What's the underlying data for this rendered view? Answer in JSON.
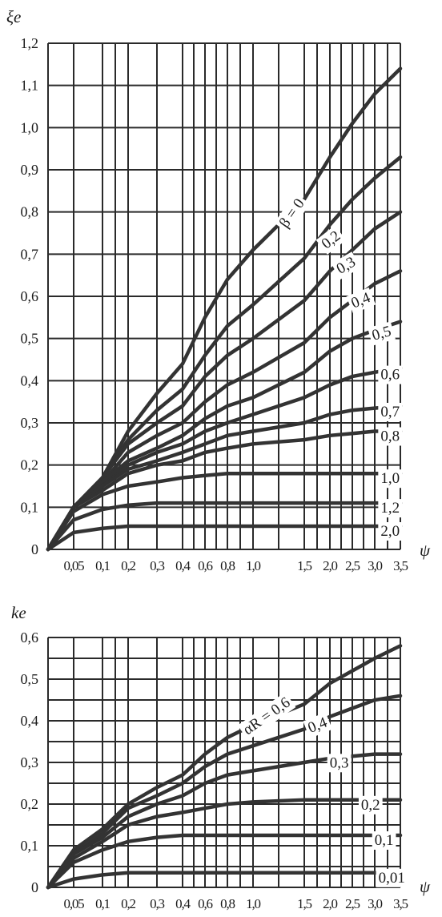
{
  "chart_data": [
    {
      "type": "line",
      "ylabel": "ξe",
      "xlabel": "ψ",
      "xlim": [
        0,
        3.5
      ],
      "ylim": [
        0,
        1.2
      ],
      "y_ticks": [
        "0",
        "0,1",
        "0,2",
        "0,3",
        "0,4",
        "0,5",
        "0,6",
        "0,7",
        "0,8",
        "0,9",
        "1,0",
        "1,1",
        "1,2"
      ],
      "x_ticks": [
        "0,05",
        "0,1",
        "0,2",
        "0,3",
        "0,4",
        "0,6",
        "0,8",
        "1,0",
        "1,5",
        "2,0",
        "2,5",
        "3,0",
        "3,5"
      ],
      "grid": true,
      "series": [
        {
          "name": "β = 0",
          "x": [
            0,
            0.05,
            0.1,
            0.2,
            0.3,
            0.4,
            0.6,
            0.8,
            1.0,
            1.5,
            2.0,
            2.5,
            3.0,
            3.5
          ],
          "values": [
            0,
            0.1,
            0.17,
            0.28,
            0.37,
            0.44,
            0.55,
            0.64,
            0.71,
            0.83,
            0.93,
            1.01,
            1.08,
            1.14
          ]
        },
        {
          "name": "0,2",
          "x": [
            0,
            0.05,
            0.1,
            0.2,
            0.3,
            0.4,
            0.6,
            0.8,
            1.0,
            1.5,
            2.0,
            2.5,
            3.0,
            3.5
          ],
          "values": [
            0,
            0.1,
            0.17,
            0.26,
            0.33,
            0.38,
            0.46,
            0.53,
            0.58,
            0.69,
            0.77,
            0.83,
            0.88,
            0.93
          ]
        },
        {
          "name": "0,3",
          "x": [
            0,
            0.05,
            0.1,
            0.2,
            0.3,
            0.4,
            0.6,
            0.8,
            1.0,
            1.5,
            2.0,
            2.5,
            3.0,
            3.5
          ],
          "values": [
            0,
            0.1,
            0.17,
            0.25,
            0.3,
            0.34,
            0.41,
            0.46,
            0.5,
            0.59,
            0.66,
            0.71,
            0.76,
            0.8
          ]
        },
        {
          "name": "0,4",
          "x": [
            0,
            0.05,
            0.1,
            0.2,
            0.3,
            0.4,
            0.6,
            0.8,
            1.0,
            1.5,
            2.0,
            2.5,
            3.0,
            3.5
          ],
          "values": [
            0,
            0.1,
            0.16,
            0.23,
            0.27,
            0.3,
            0.35,
            0.39,
            0.42,
            0.49,
            0.55,
            0.59,
            0.63,
            0.66
          ]
        },
        {
          "name": "0,5",
          "x": [
            0,
            0.05,
            0.1,
            0.2,
            0.3,
            0.4,
            0.6,
            0.8,
            1.0,
            1.5,
            2.0,
            2.5,
            3.0,
            3.5
          ],
          "values": [
            0,
            0.1,
            0.16,
            0.21,
            0.24,
            0.27,
            0.31,
            0.34,
            0.36,
            0.42,
            0.47,
            0.5,
            0.52,
            0.54
          ]
        },
        {
          "name": "0,6",
          "x": [
            0,
            0.05,
            0.1,
            0.2,
            0.3,
            0.4,
            0.6,
            0.8,
            1.0,
            1.5,
            2.0,
            2.5,
            3.0,
            3.5
          ],
          "values": [
            0,
            0.1,
            0.15,
            0.2,
            0.23,
            0.25,
            0.28,
            0.3,
            0.32,
            0.36,
            0.39,
            0.41,
            0.42,
            0.43
          ]
        },
        {
          "name": "0,7",
          "x": [
            0,
            0.05,
            0.1,
            0.2,
            0.3,
            0.4,
            0.6,
            0.8,
            1.0,
            1.5,
            2.0,
            2.5,
            3.0,
            3.5
          ],
          "values": [
            0,
            0.1,
            0.15,
            0.19,
            0.21,
            0.23,
            0.25,
            0.27,
            0.28,
            0.3,
            0.32,
            0.33,
            0.335,
            0.34
          ]
        },
        {
          "name": "0,8",
          "x": [
            0,
            0.05,
            0.1,
            0.2,
            0.3,
            0.4,
            0.6,
            0.8,
            1.0,
            1.5,
            2.0,
            2.5,
            3.0,
            3.5
          ],
          "values": [
            0,
            0.1,
            0.14,
            0.18,
            0.2,
            0.21,
            0.23,
            0.24,
            0.25,
            0.26,
            0.27,
            0.275,
            0.28,
            0.28
          ]
        },
        {
          "name": "1,0",
          "x": [
            0,
            0.05,
            0.1,
            0.2,
            0.3,
            0.4,
            0.6,
            0.8,
            1.0,
            1.5,
            2.0,
            2.5,
            3.0,
            3.5
          ],
          "values": [
            0,
            0.09,
            0.13,
            0.15,
            0.16,
            0.17,
            0.175,
            0.18,
            0.18,
            0.18,
            0.18,
            0.18,
            0.18,
            0.18
          ]
        },
        {
          "name": "1,2",
          "x": [
            0,
            0.05,
            0.1,
            0.2,
            0.3,
            0.4,
            0.6,
            0.8,
            1.0,
            1.5,
            2.0,
            2.5,
            3.0,
            3.5
          ],
          "values": [
            0,
            0.07,
            0.095,
            0.105,
            0.11,
            0.11,
            0.11,
            0.11,
            0.11,
            0.11,
            0.11,
            0.11,
            0.11,
            0.11
          ]
        },
        {
          "name": "2,0",
          "x": [
            0,
            0.05,
            0.1,
            0.2,
            0.3,
            0.4,
            0.6,
            0.8,
            1.0,
            1.5,
            2.0,
            2.5,
            3.0,
            3.5
          ],
          "values": [
            0,
            0.04,
            0.05,
            0.055,
            0.055,
            0.055,
            0.055,
            0.055,
            0.055,
            0.055,
            0.055,
            0.055,
            0.055,
            0.055
          ]
        }
      ]
    },
    {
      "type": "line",
      "ylabel": "ke",
      "xlabel": "ψ",
      "xlim": [
        0,
        3.5
      ],
      "ylim": [
        0,
        0.6
      ],
      "y_ticks": [
        "0",
        "0,1",
        "0,2",
        "0,3",
        "0,4",
        "0,5",
        "0,6"
      ],
      "x_ticks": [
        "0,05",
        "0,1",
        "0,2",
        "0,3",
        "0,4",
        "0,6",
        "0,8",
        "1,0",
        "1,5",
        "2,0",
        "2,5",
        "3,0",
        "3,5"
      ],
      "grid": true,
      "series": [
        {
          "name": "αR = 0,6",
          "x": [
            0,
            0.05,
            0.1,
            0.2,
            0.3,
            0.4,
            0.6,
            0.8,
            1.0,
            1.5,
            2.0,
            2.5,
            3.0,
            3.5
          ],
          "values": [
            0,
            0.09,
            0.14,
            0.2,
            0.24,
            0.27,
            0.32,
            0.36,
            0.39,
            0.44,
            0.49,
            0.52,
            0.55,
            0.58
          ]
        },
        {
          "name": "0,4",
          "x": [
            0,
            0.05,
            0.1,
            0.2,
            0.3,
            0.4,
            0.6,
            0.8,
            1.0,
            1.5,
            2.0,
            2.5,
            3.0,
            3.5
          ],
          "values": [
            0,
            0.08,
            0.13,
            0.19,
            0.22,
            0.25,
            0.29,
            0.32,
            0.34,
            0.38,
            0.41,
            0.43,
            0.45,
            0.46
          ]
        },
        {
          "name": "0,3",
          "x": [
            0,
            0.05,
            0.1,
            0.2,
            0.3,
            0.4,
            0.6,
            0.8,
            1.0,
            1.5,
            2.0,
            2.5,
            3.0,
            3.5
          ],
          "values": [
            0,
            0.08,
            0.12,
            0.17,
            0.2,
            0.22,
            0.25,
            0.27,
            0.28,
            0.3,
            0.31,
            0.315,
            0.32,
            0.32
          ]
        },
        {
          "name": "0,2",
          "x": [
            0,
            0.05,
            0.1,
            0.2,
            0.3,
            0.4,
            0.6,
            0.8,
            1.0,
            1.5,
            2.0,
            2.5,
            3.0,
            3.5
          ],
          "values": [
            0,
            0.07,
            0.11,
            0.15,
            0.17,
            0.18,
            0.19,
            0.2,
            0.205,
            0.21,
            0.21,
            0.21,
            0.21,
            0.21
          ]
        },
        {
          "name": "0,1",
          "x": [
            0,
            0.05,
            0.1,
            0.2,
            0.3,
            0.4,
            0.6,
            0.8,
            1.0,
            1.5,
            2.0,
            2.5,
            3.0,
            3.5
          ],
          "values": [
            0,
            0.06,
            0.09,
            0.11,
            0.12,
            0.125,
            0.125,
            0.125,
            0.125,
            0.125,
            0.125,
            0.125,
            0.125,
            0.125
          ]
        },
        {
          "name": "0,01",
          "x": [
            0,
            0.05,
            0.1,
            0.2,
            0.3,
            0.4,
            0.6,
            0.8,
            1.0,
            1.5,
            2.0,
            2.5,
            3.0,
            3.5
          ],
          "values": [
            0,
            0.02,
            0.03,
            0.035,
            0.035,
            0.035,
            0.035,
            0.035,
            0.035,
            0.035,
            0.035,
            0.035,
            0.035,
            0.035
          ]
        }
      ]
    }
  ]
}
